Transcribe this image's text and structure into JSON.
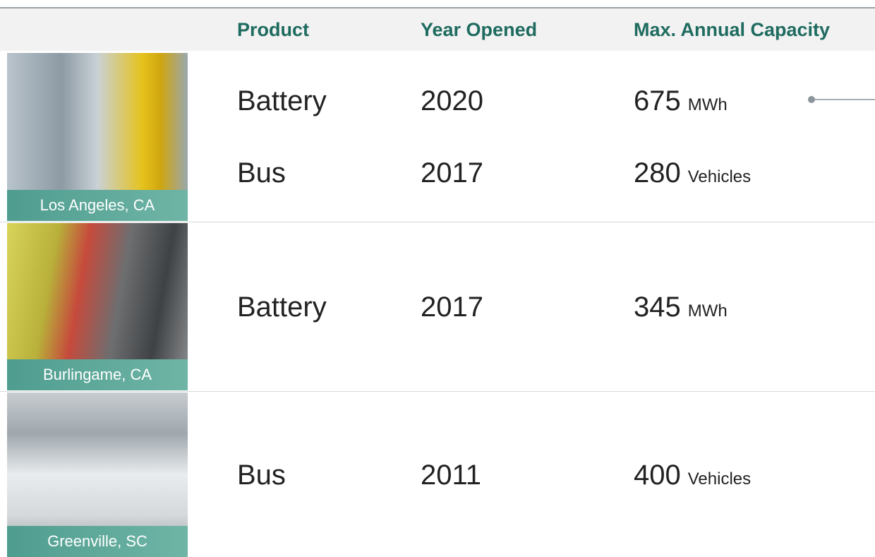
{
  "header": {
    "columns": [
      "Product",
      "Year Opened",
      "Max. Annual Capacity"
    ]
  },
  "table": {
    "groups": [
      {
        "location": "Los Angeles, CA",
        "rows": [
          {
            "product": "Battery",
            "year": 2020,
            "capacity": 675,
            "unit": "MWh"
          },
          {
            "product": "Bus",
            "year": 2017,
            "capacity": 280,
            "unit": "Vehicles"
          }
        ]
      },
      {
        "location": "Burlingame, CA",
        "rows": [
          {
            "product": "Battery",
            "year": 2017,
            "capacity": 345,
            "unit": "MWh"
          }
        ]
      },
      {
        "location": "Greenville, SC",
        "rows": [
          {
            "product": "Bus",
            "year": 2011,
            "capacity": 400,
            "unit": "Vehicles"
          }
        ]
      }
    ]
  }
}
